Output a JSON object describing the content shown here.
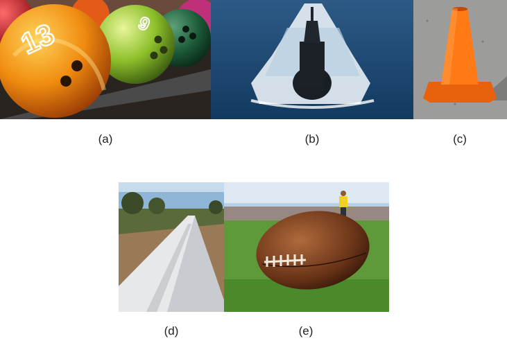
{
  "figure": {
    "panels": [
      {
        "id": "a",
        "caption": "(a)",
        "subject": "bowling balls"
      },
      {
        "id": "b",
        "caption": "(b)",
        "subject": "submarine"
      },
      {
        "id": "c",
        "caption": "(c)",
        "subject": "traffic cone"
      },
      {
        "id": "d",
        "caption": "(d)",
        "subject": "pipeline"
      },
      {
        "id": "e",
        "caption": "(e)",
        "subject": "football"
      }
    ],
    "ball_numbers": {
      "orange": "13",
      "green": "9"
    }
  }
}
